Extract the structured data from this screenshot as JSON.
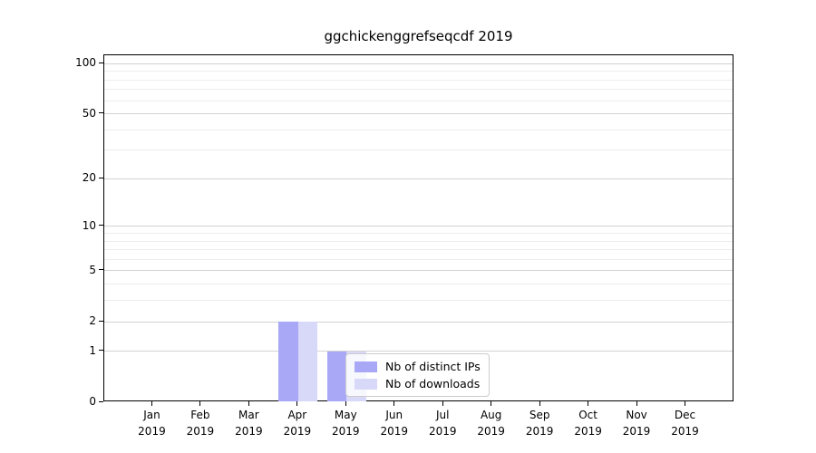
{
  "chart_data": {
    "type": "bar",
    "title": "ggchickenggrefseqcdf 2019",
    "year_label": "2019",
    "categories": [
      "Jan",
      "Feb",
      "Mar",
      "Apr",
      "May",
      "Jun",
      "Jul",
      "Aug",
      "Sep",
      "Oct",
      "Nov",
      "Dec"
    ],
    "series": [
      {
        "name": "Nb of distinct IPs",
        "color": "#a8a8f7",
        "values": [
          0,
          0,
          0,
          2,
          1,
          0,
          0,
          0,
          0,
          0,
          0,
          0
        ]
      },
      {
        "name": "Nb of downloads",
        "color": "#d8d8f9",
        "values": [
          0,
          0,
          0,
          2,
          1,
          0,
          0,
          0,
          0,
          0,
          0,
          0
        ]
      }
    ],
    "xlabel": "",
    "ylabel": "",
    "y_axis": {
      "scale": "log1p",
      "major_ticks": [
        0,
        1,
        2,
        5,
        10,
        20,
        50,
        100
      ],
      "minor_ticks": [
        3,
        4,
        6,
        7,
        8,
        9,
        30,
        40,
        60,
        70,
        80,
        90
      ],
      "ylim": [
        0,
        112.3
      ]
    },
    "grid": {
      "major_color": "#d2d2d2",
      "minor_color": "#ededed"
    },
    "legend": {
      "position": "lower-center",
      "entries": [
        "Nb of distinct IPs",
        "Nb of downloads"
      ]
    }
  }
}
